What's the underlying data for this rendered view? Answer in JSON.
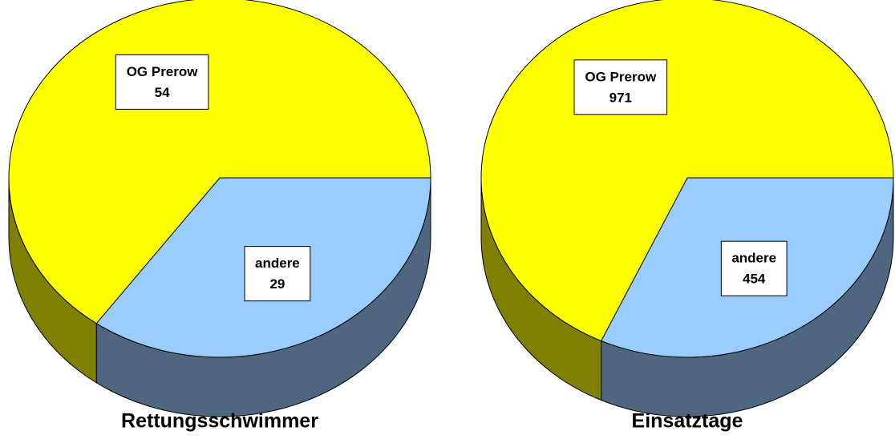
{
  "chart_data": [
    {
      "type": "pie",
      "title": "Rettungsschwimmer",
      "categories": [
        "andere",
        "OG Prerow"
      ],
      "values": [
        29,
        54
      ],
      "colors": [
        "#99ccff",
        "#ffff00"
      ],
      "side_colors": [
        "#4f6680",
        "#808000"
      ]
    },
    {
      "type": "pie",
      "title": "Einsatztage",
      "categories": [
        "andere",
        "OG Prerow"
      ],
      "values": [
        454,
        971
      ],
      "colors": [
        "#99ccff",
        "#ffff00"
      ],
      "side_colors": [
        "#4f6680",
        "#808000"
      ]
    }
  ]
}
